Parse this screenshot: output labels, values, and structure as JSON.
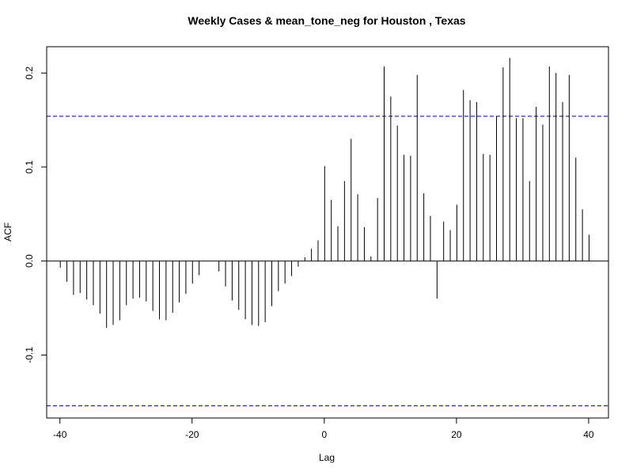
{
  "chart_data": {
    "type": "bar",
    "title": "Weekly Cases & mean_tone_neg for Houston , Texas",
    "xlabel": "Lag",
    "ylabel": "ACF",
    "xlim": [
      -42,
      43
    ],
    "ylim": [
      -0.167,
      0.228
    ],
    "x_ticks": [
      -40,
      -20,
      0,
      20,
      40
    ],
    "x_tick_labels": [
      "-40",
      "-20",
      "0",
      "20",
      "40"
    ],
    "y_ticks": [
      -0.1,
      0.0,
      0.1,
      0.2
    ],
    "y_tick_labels": [
      "-0.1",
      "0.0",
      "0.1",
      "0.2"
    ],
    "confidence_bounds": [
      0.154,
      -0.154
    ],
    "confidence_color": "#00008B",
    "bar_color": "#000000",
    "lags": [
      -40,
      -39,
      -38,
      -37,
      -36,
      -35,
      -34,
      -33,
      -32,
      -31,
      -30,
      -29,
      -28,
      -27,
      -26,
      -25,
      -24,
      -23,
      -22,
      -21,
      -20,
      -19,
      -18,
      -17,
      -16,
      -15,
      -14,
      -13,
      -12,
      -11,
      -10,
      -9,
      -8,
      -7,
      -6,
      -5,
      -4,
      -3,
      -2,
      -1,
      0,
      1,
      2,
      3,
      4,
      5,
      6,
      7,
      8,
      9,
      10,
      11,
      12,
      13,
      14,
      15,
      16,
      17,
      18,
      19,
      20,
      21,
      22,
      23,
      24,
      25,
      26,
      27,
      28,
      29,
      30,
      31,
      32,
      33,
      34,
      35,
      36,
      37,
      38,
      39,
      40
    ],
    "acf": [
      -0.007,
      -0.022,
      -0.036,
      -0.034,
      -0.041,
      -0.047,
      -0.056,
      -0.071,
      -0.068,
      -0.063,
      -0.047,
      -0.04,
      -0.039,
      -0.043,
      -0.053,
      -0.062,
      -0.063,
      -0.055,
      -0.044,
      -0.035,
      -0.024,
      -0.015,
      0.0,
      0.0,
      -0.011,
      -0.027,
      -0.042,
      -0.052,
      -0.062,
      -0.068,
      -0.069,
      -0.065,
      -0.048,
      -0.032,
      -0.024,
      -0.016,
      -0.006,
      0.004,
      0.013,
      0.022,
      0.101,
      0.065,
      0.037,
      0.085,
      0.13,
      0.071,
      0.036,
      0.005,
      0.067,
      0.207,
      0.175,
      0.144,
      0.113,
      0.112,
      0.198,
      0.072,
      0.048,
      -0.04,
      0.042,
      0.033,
      0.06,
      0.182,
      0.171,
      0.169,
      0.114,
      0.113,
      0.154,
      0.206,
      0.216,
      0.152,
      0.152,
      0.085,
      0.164,
      0.145,
      0.207,
      0.2,
      0.169,
      0.198,
      0.11,
      0.055,
      0.028
    ]
  }
}
